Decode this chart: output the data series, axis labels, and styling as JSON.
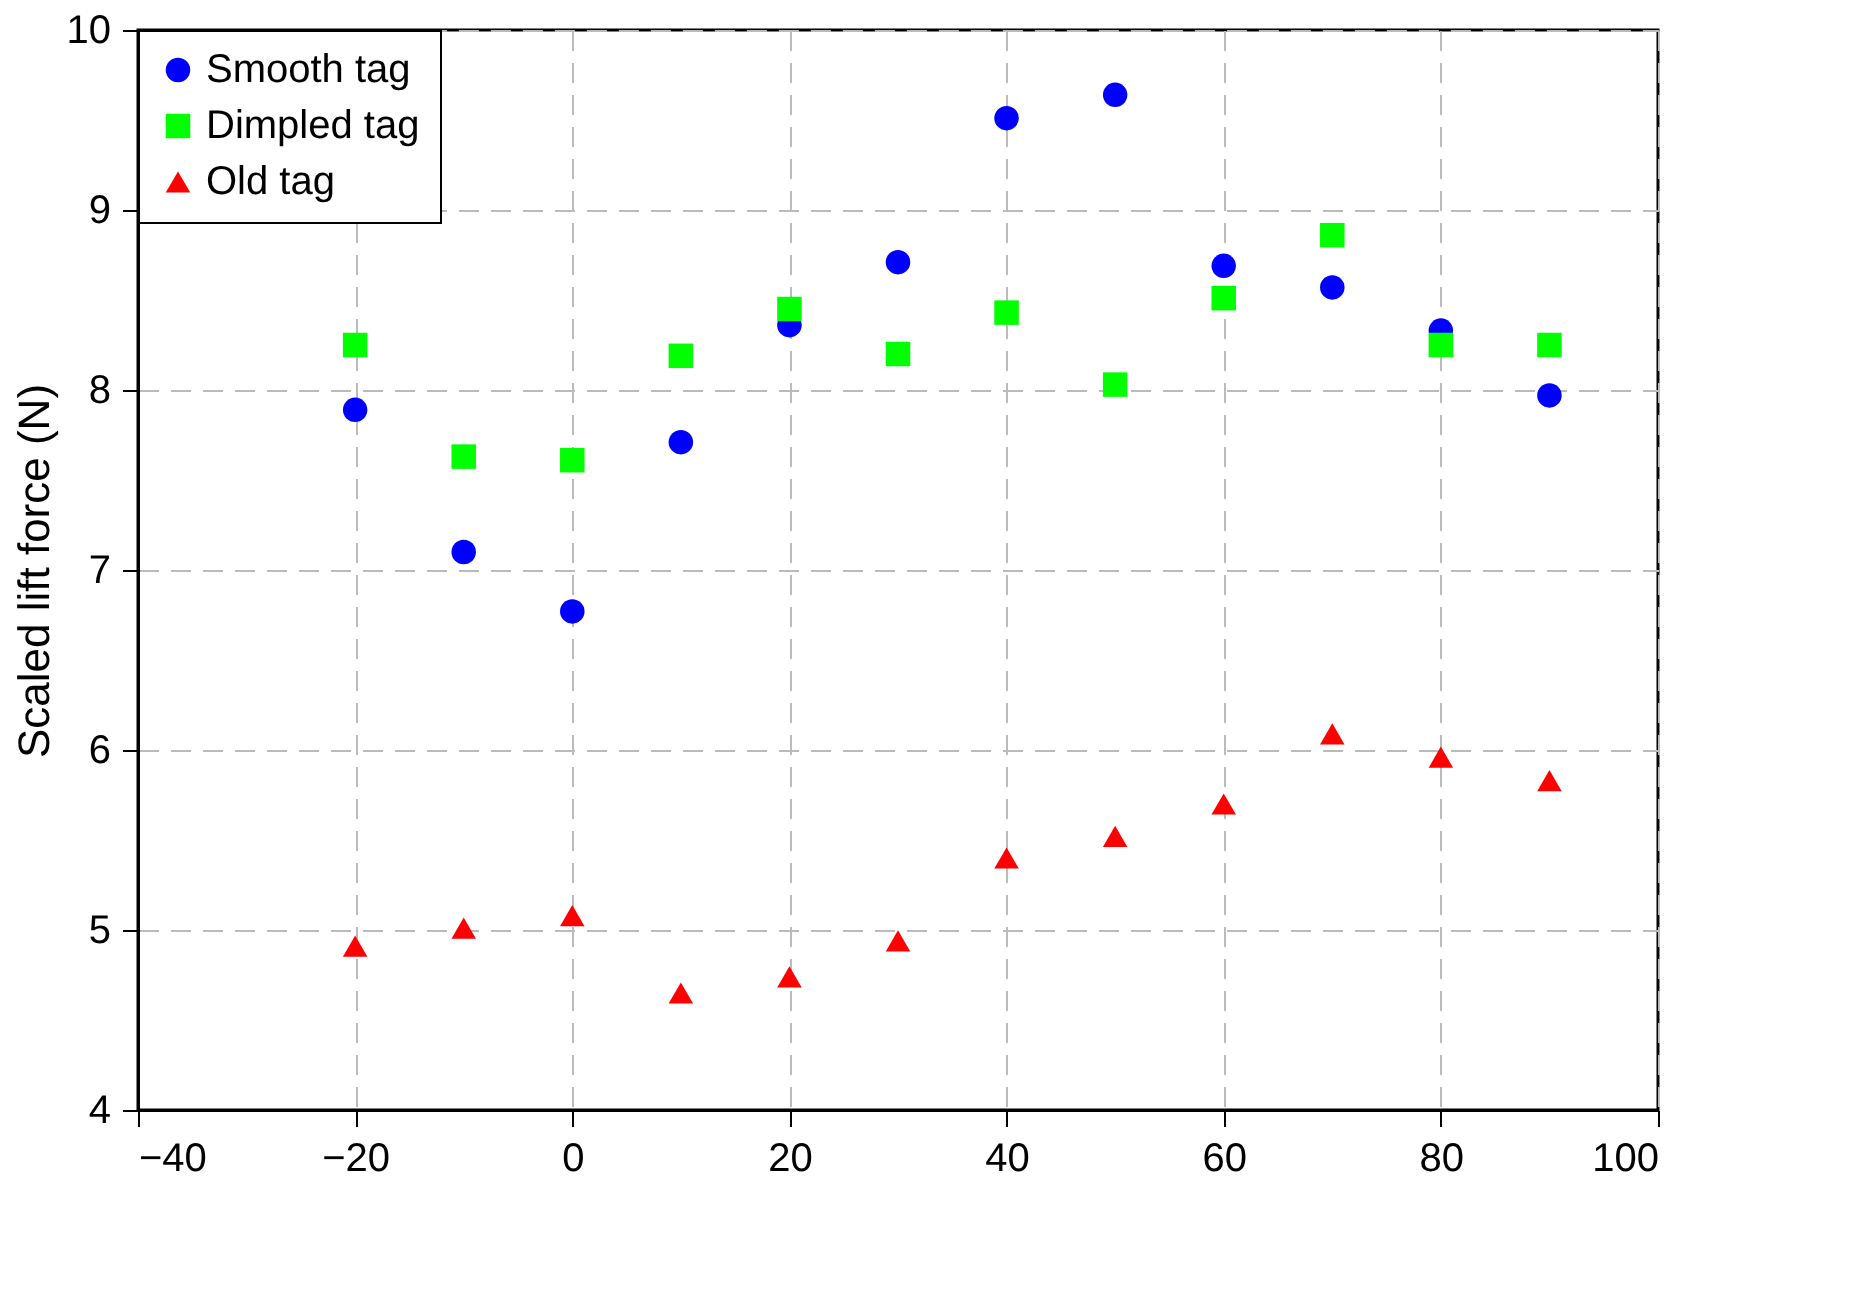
{
  "chart_data": {
    "type": "scatter",
    "ylabel": "Scaled lift force (N)",
    "x": [
      -20,
      -10,
      0,
      10,
      20,
      30,
      40,
      50,
      60,
      70,
      80,
      90
    ],
    "series": [
      {
        "name": "Smooth tag",
        "color": "#0000ff",
        "marker": "circle",
        "values": [
          7.89,
          7.1,
          6.77,
          7.71,
          8.36,
          8.71,
          9.51,
          9.64,
          8.69,
          8.57,
          8.33,
          7.97
        ]
      },
      {
        "name": "Dimpled tag",
        "color": "#00ff00",
        "marker": "square",
        "values": [
          8.25,
          7.63,
          7.61,
          8.19,
          8.45,
          8.2,
          8.43,
          8.03,
          8.51,
          8.86,
          8.25,
          8.25
        ]
      },
      {
        "name": "Old tag",
        "color": "#ff0000",
        "marker": "triangle",
        "values": [
          4.91,
          5.01,
          5.08,
          4.65,
          4.74,
          4.94,
          5.4,
          5.52,
          5.7,
          6.09,
          5.96,
          5.83
        ]
      }
    ],
    "xlim": [
      -40,
      100
    ],
    "xticks": [
      -40,
      -20,
      0,
      20,
      40,
      60,
      80,
      100
    ],
    "ylim": [
      4,
      10
    ],
    "yticks": [
      4,
      5,
      6,
      7,
      8,
      9,
      10
    ],
    "grid": true,
    "legend": "top left"
  }
}
